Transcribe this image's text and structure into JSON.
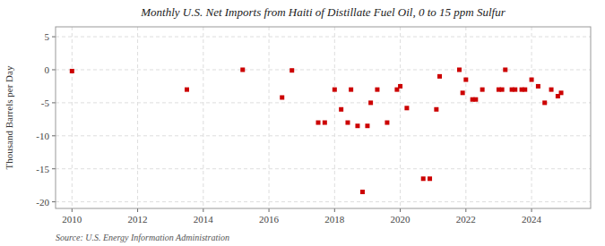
{
  "chart_data": {
    "type": "scatter",
    "title": "Monthly U.S. Net Imports from Haiti of Distillate Fuel Oil, 0 to 15 ppm Sulfur",
    "ylabel": "Thousand Barrels per Day",
    "source": "Source: U.S. Energy Information Administration",
    "color": "#cc0000",
    "marker": "square",
    "grid": true,
    "xlim": [
      2009.5,
      2025.8
    ],
    "ylim": [
      -21,
      6.5
    ],
    "xticks": [
      2010,
      2012,
      2014,
      2016,
      2018,
      2020,
      2022,
      2024
    ],
    "yticks": [
      5,
      0,
      -5,
      -10,
      -15,
      -20
    ],
    "x": [
      2010.0,
      2013.5,
      2015.2,
      2016.4,
      2016.7,
      2017.5,
      2017.7,
      2018.0,
      2018.2,
      2018.4,
      2018.5,
      2018.7,
      2018.85,
      2019.0,
      2019.1,
      2019.3,
      2019.6,
      2019.9,
      2020.0,
      2020.2,
      2020.7,
      2020.9,
      2021.1,
      2021.2,
      2021.8,
      2021.9,
      2022.0,
      2022.2,
      2022.3,
      2022.5,
      2023.0,
      2023.1,
      2023.2,
      2023.4,
      2023.5,
      2023.7,
      2023.8,
      2024.0,
      2024.2,
      2024.4,
      2024.6,
      2024.8,
      2024.9
    ],
    "values": [
      -0.2,
      -3.0,
      0.0,
      -4.2,
      -0.1,
      -8.0,
      -8.0,
      -3.0,
      -6.0,
      -8.0,
      -3.0,
      -8.5,
      -18.5,
      -8.5,
      -5.0,
      -3.0,
      -8.0,
      -3.0,
      -2.5,
      -5.8,
      -16.5,
      -16.5,
      -6.0,
      -1.0,
      0.0,
      -3.5,
      -1.5,
      -4.5,
      -4.5,
      -3.0,
      -3.0,
      -3.0,
      0.0,
      -3.0,
      -3.0,
      -3.0,
      -3.0,
      -1.5,
      -2.5,
      -5.0,
      -3.0,
      -4.0,
      -3.5
    ]
  }
}
